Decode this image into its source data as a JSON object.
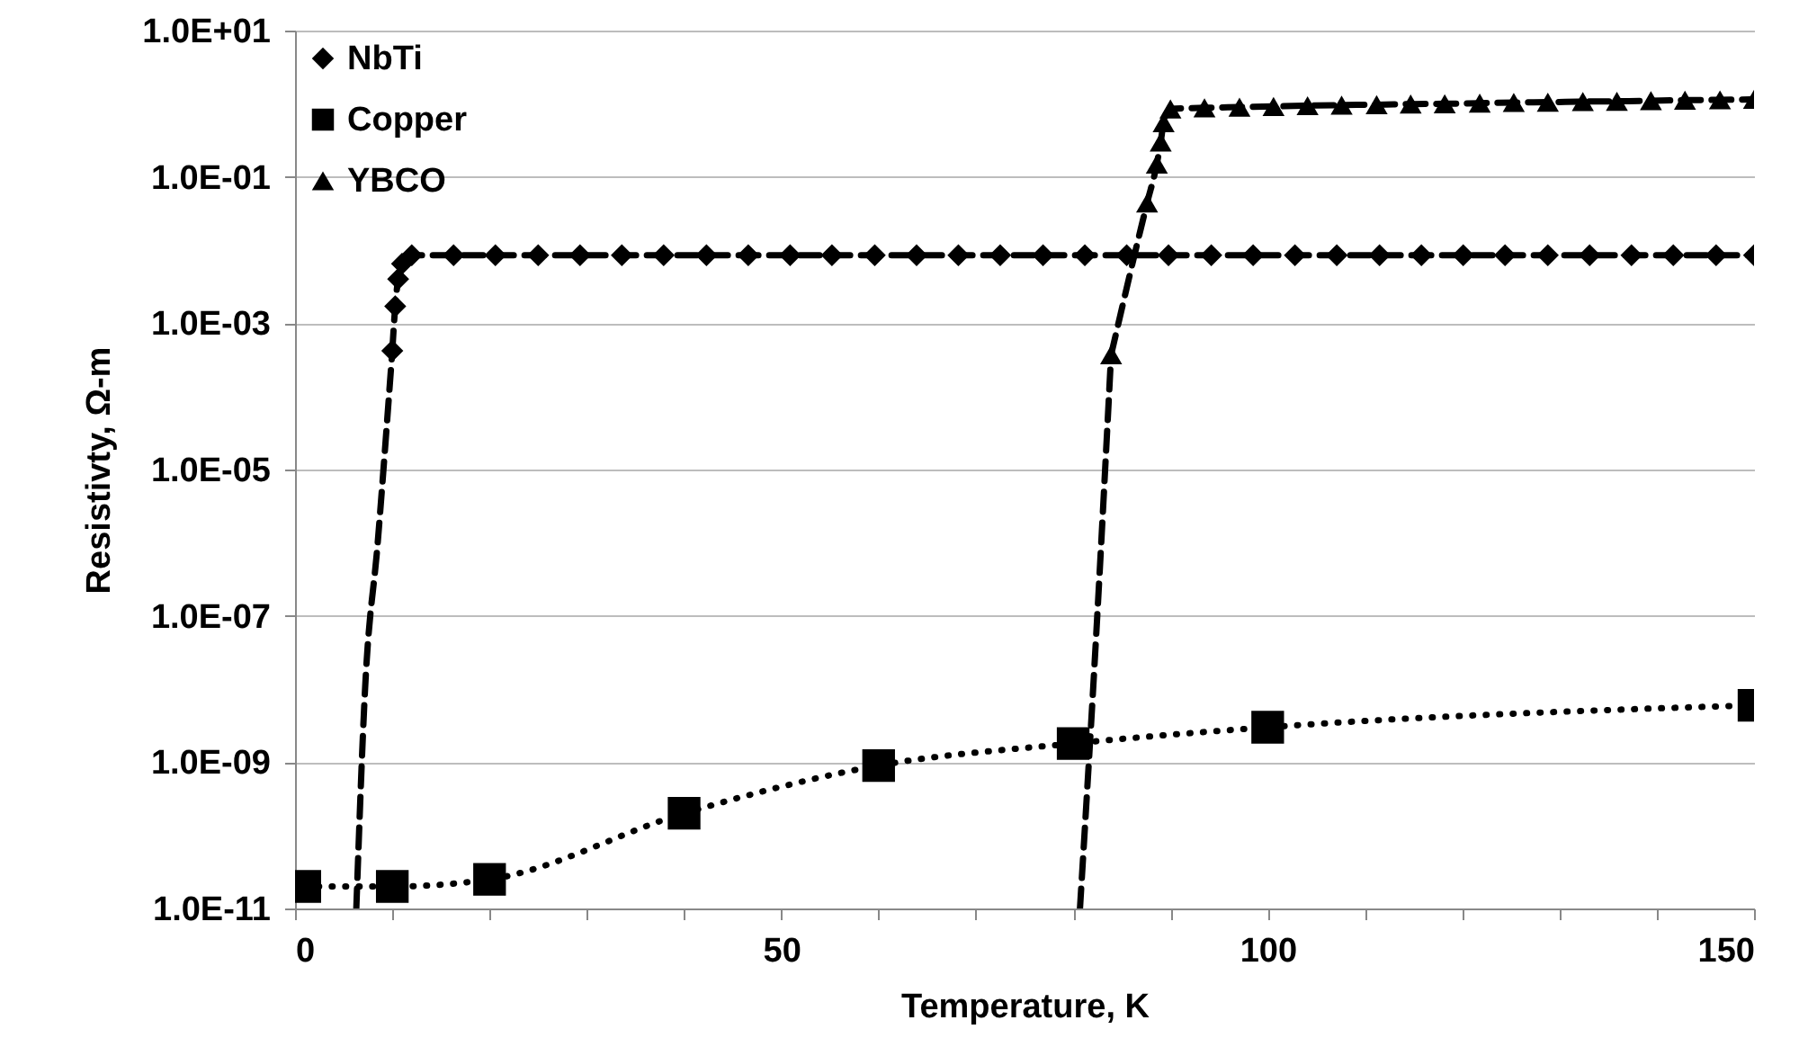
{
  "chart_data": {
    "type": "line",
    "xlabel": "Temperature, K",
    "ylabel": "Resistivty, Ω-m",
    "log": "y",
    "grid": "y",
    "legend": "top left",
    "xlim": [
      0,
      150
    ],
    "ylim": [
      1e-11,
      10
    ],
    "xticks": [
      0,
      {
        "value": 10,
        "label": null
      },
      {
        "value": 20,
        "label": null
      },
      {
        "value": 30,
        "label": null
      },
      {
        "value": 40,
        "label": null
      },
      50,
      {
        "value": 60,
        "label": null
      },
      {
        "value": 70,
        "label": null
      },
      {
        "value": 80,
        "label": null
      },
      {
        "value": 90,
        "label": null
      },
      100,
      {
        "value": 110,
        "label": null
      },
      {
        "value": 120,
        "label": null
      },
      {
        "value": 130,
        "label": null
      },
      {
        "value": 140,
        "label": null
      },
      150
    ],
    "yticks": [
      {
        "value": 1e-11,
        "label": "1.0E-11"
      },
      {
        "value": 1e-09,
        "label": "1.0E-09"
      },
      {
        "value": 1e-07,
        "label": "1.0E-07"
      },
      {
        "value": 1e-05,
        "label": "1.0E-05"
      },
      {
        "value": 0.001,
        "label": "1.0E-03"
      },
      {
        "value": 0.1,
        "label": "1.0E-01"
      },
      {
        "value": 10,
        "label": "1.0E+01"
      }
    ],
    "series": [
      {
        "name": "NbTi",
        "color": "#000000",
        "marker": "diamond",
        "line_style": "dashed",
        "x": [
          10,
          10.3,
          10.6,
          11,
          12,
          16.3,
          20.6,
          25,
          29.3,
          33.6,
          37.9,
          42.3,
          46.6,
          50.9,
          55.2,
          59.6,
          63.9,
          68.2,
          72.5,
          76.9,
          81.2,
          85.5,
          89.8,
          94.2,
          98.5,
          102.8,
          107.1,
          111.5,
          115.8,
          120.1,
          124.4,
          128.8,
          133.1,
          137.4,
          141.7,
          146.1,
          150
        ],
        "values": [
          0.00042,
          0.0017,
          0.004,
          0.0065,
          0.0085,
          0.0085,
          0.0085,
          0.0085,
          0.0085,
          0.0085,
          0.0085,
          0.0085,
          0.0085,
          0.0085,
          0.0085,
          0.0085,
          0.0085,
          0.0085,
          0.0085,
          0.0085,
          0.0085,
          0.0085,
          0.0085,
          0.0085,
          0.0085,
          0.0085,
          0.0085,
          0.0085,
          0.0085,
          0.0085,
          0.0085,
          0.0085,
          0.0085,
          0.0085,
          0.0085,
          0.0085,
          0.0085
        ]
      },
      {
        "color": "#000000",
        "marker": "none",
        "line_style": "dashed",
        "x": [
          6.3,
          7.2,
          8.5,
          10
        ],
        "values": [
          1e-11,
          1e-08,
          1e-06,
          0.00042
        ]
      },
      {
        "name": "Copper",
        "color": "#000000",
        "marker": "square",
        "line_style": "dotted",
        "x": [
          1,
          10,
          20,
          40,
          60,
          80,
          100,
          150
        ],
        "values": [
          2e-11,
          2e-11,
          2.5e-11,
          2e-10,
          9e-10,
          1.8e-09,
          3e-09,
          6e-09
        ]
      },
      {
        "name": "YBCO",
        "color": "#000000",
        "marker": "triangle",
        "line_style": "dashed",
        "x": [
          83.9,
          87.6,
          88.6,
          89,
          89.3,
          90,
          93.5,
          97.1,
          100.6,
          104.1,
          107.6,
          111.2,
          114.7,
          118.2,
          121.8,
          125.3,
          128.8,
          132.4,
          135.9,
          139.4,
          142.9,
          146.5,
          150
        ],
        "values": [
          0.00037,
          0.044,
          0.15,
          0.3,
          0.55,
          0.85,
          0.88,
          0.9,
          0.92,
          0.94,
          0.96,
          0.97,
          0.99,
          1.0,
          1.02,
          1.04,
          1.05,
          1.07,
          1.08,
          1.1,
          1.12,
          1.13,
          1.15
        ]
      },
      {
        "color": "#000000",
        "marker": "none",
        "line_style": "dashed",
        "x": [
          80.7,
          82.4,
          83.9
        ],
        "values": [
          1e-11,
          6.5e-08,
          0.00037
        ]
      }
    ]
  }
}
